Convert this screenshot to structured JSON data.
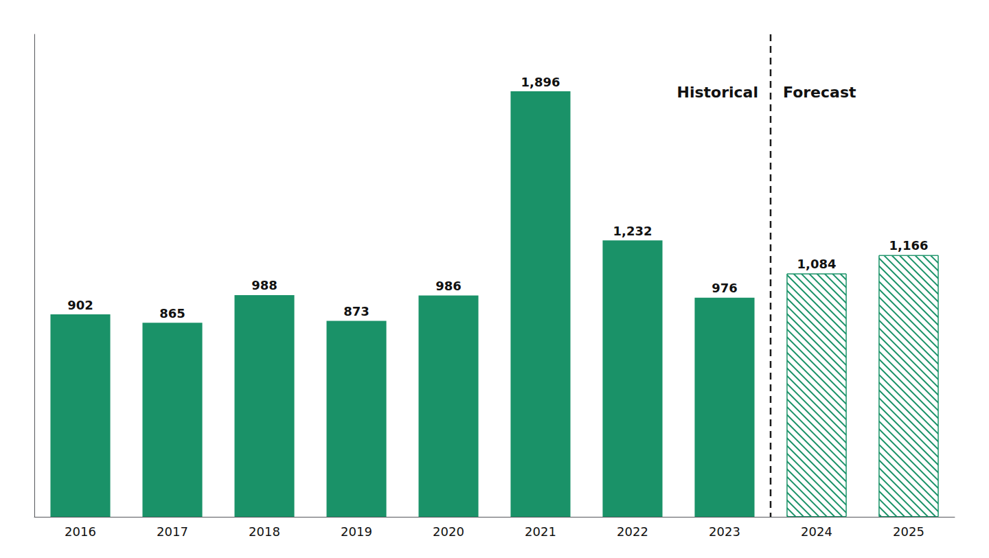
{
  "chart_data": {
    "type": "bar",
    "categories": [
      "2016",
      "2017",
      "2018",
      "2019",
      "2020",
      "2021",
      "2022",
      "2023",
      "2024",
      "2025"
    ],
    "series": [
      {
        "name": "Historical",
        "color": "#1a9268",
        "values": [
          902,
          865,
          988,
          873,
          986,
          1896,
          1232,
          976,
          null,
          null
        ],
        "value_labels": [
          "902",
          "865",
          "988",
          "873",
          "986",
          "1,896",
          "1,232",
          "976",
          null,
          null
        ]
      },
      {
        "name": "Forecast",
        "color": "#1a9268",
        "values": [
          null,
          null,
          null,
          null,
          null,
          null,
          null,
          null,
          1084,
          1166
        ],
        "value_labels": [
          null,
          null,
          null,
          null,
          null,
          null,
          null,
          null,
          "1,084",
          "1,166"
        ]
      }
    ],
    "ylim": [
      0,
      2150
    ],
    "yticks": [],
    "grid": false,
    "data_labels": true,
    "tick_labels": "x"
  }
}
